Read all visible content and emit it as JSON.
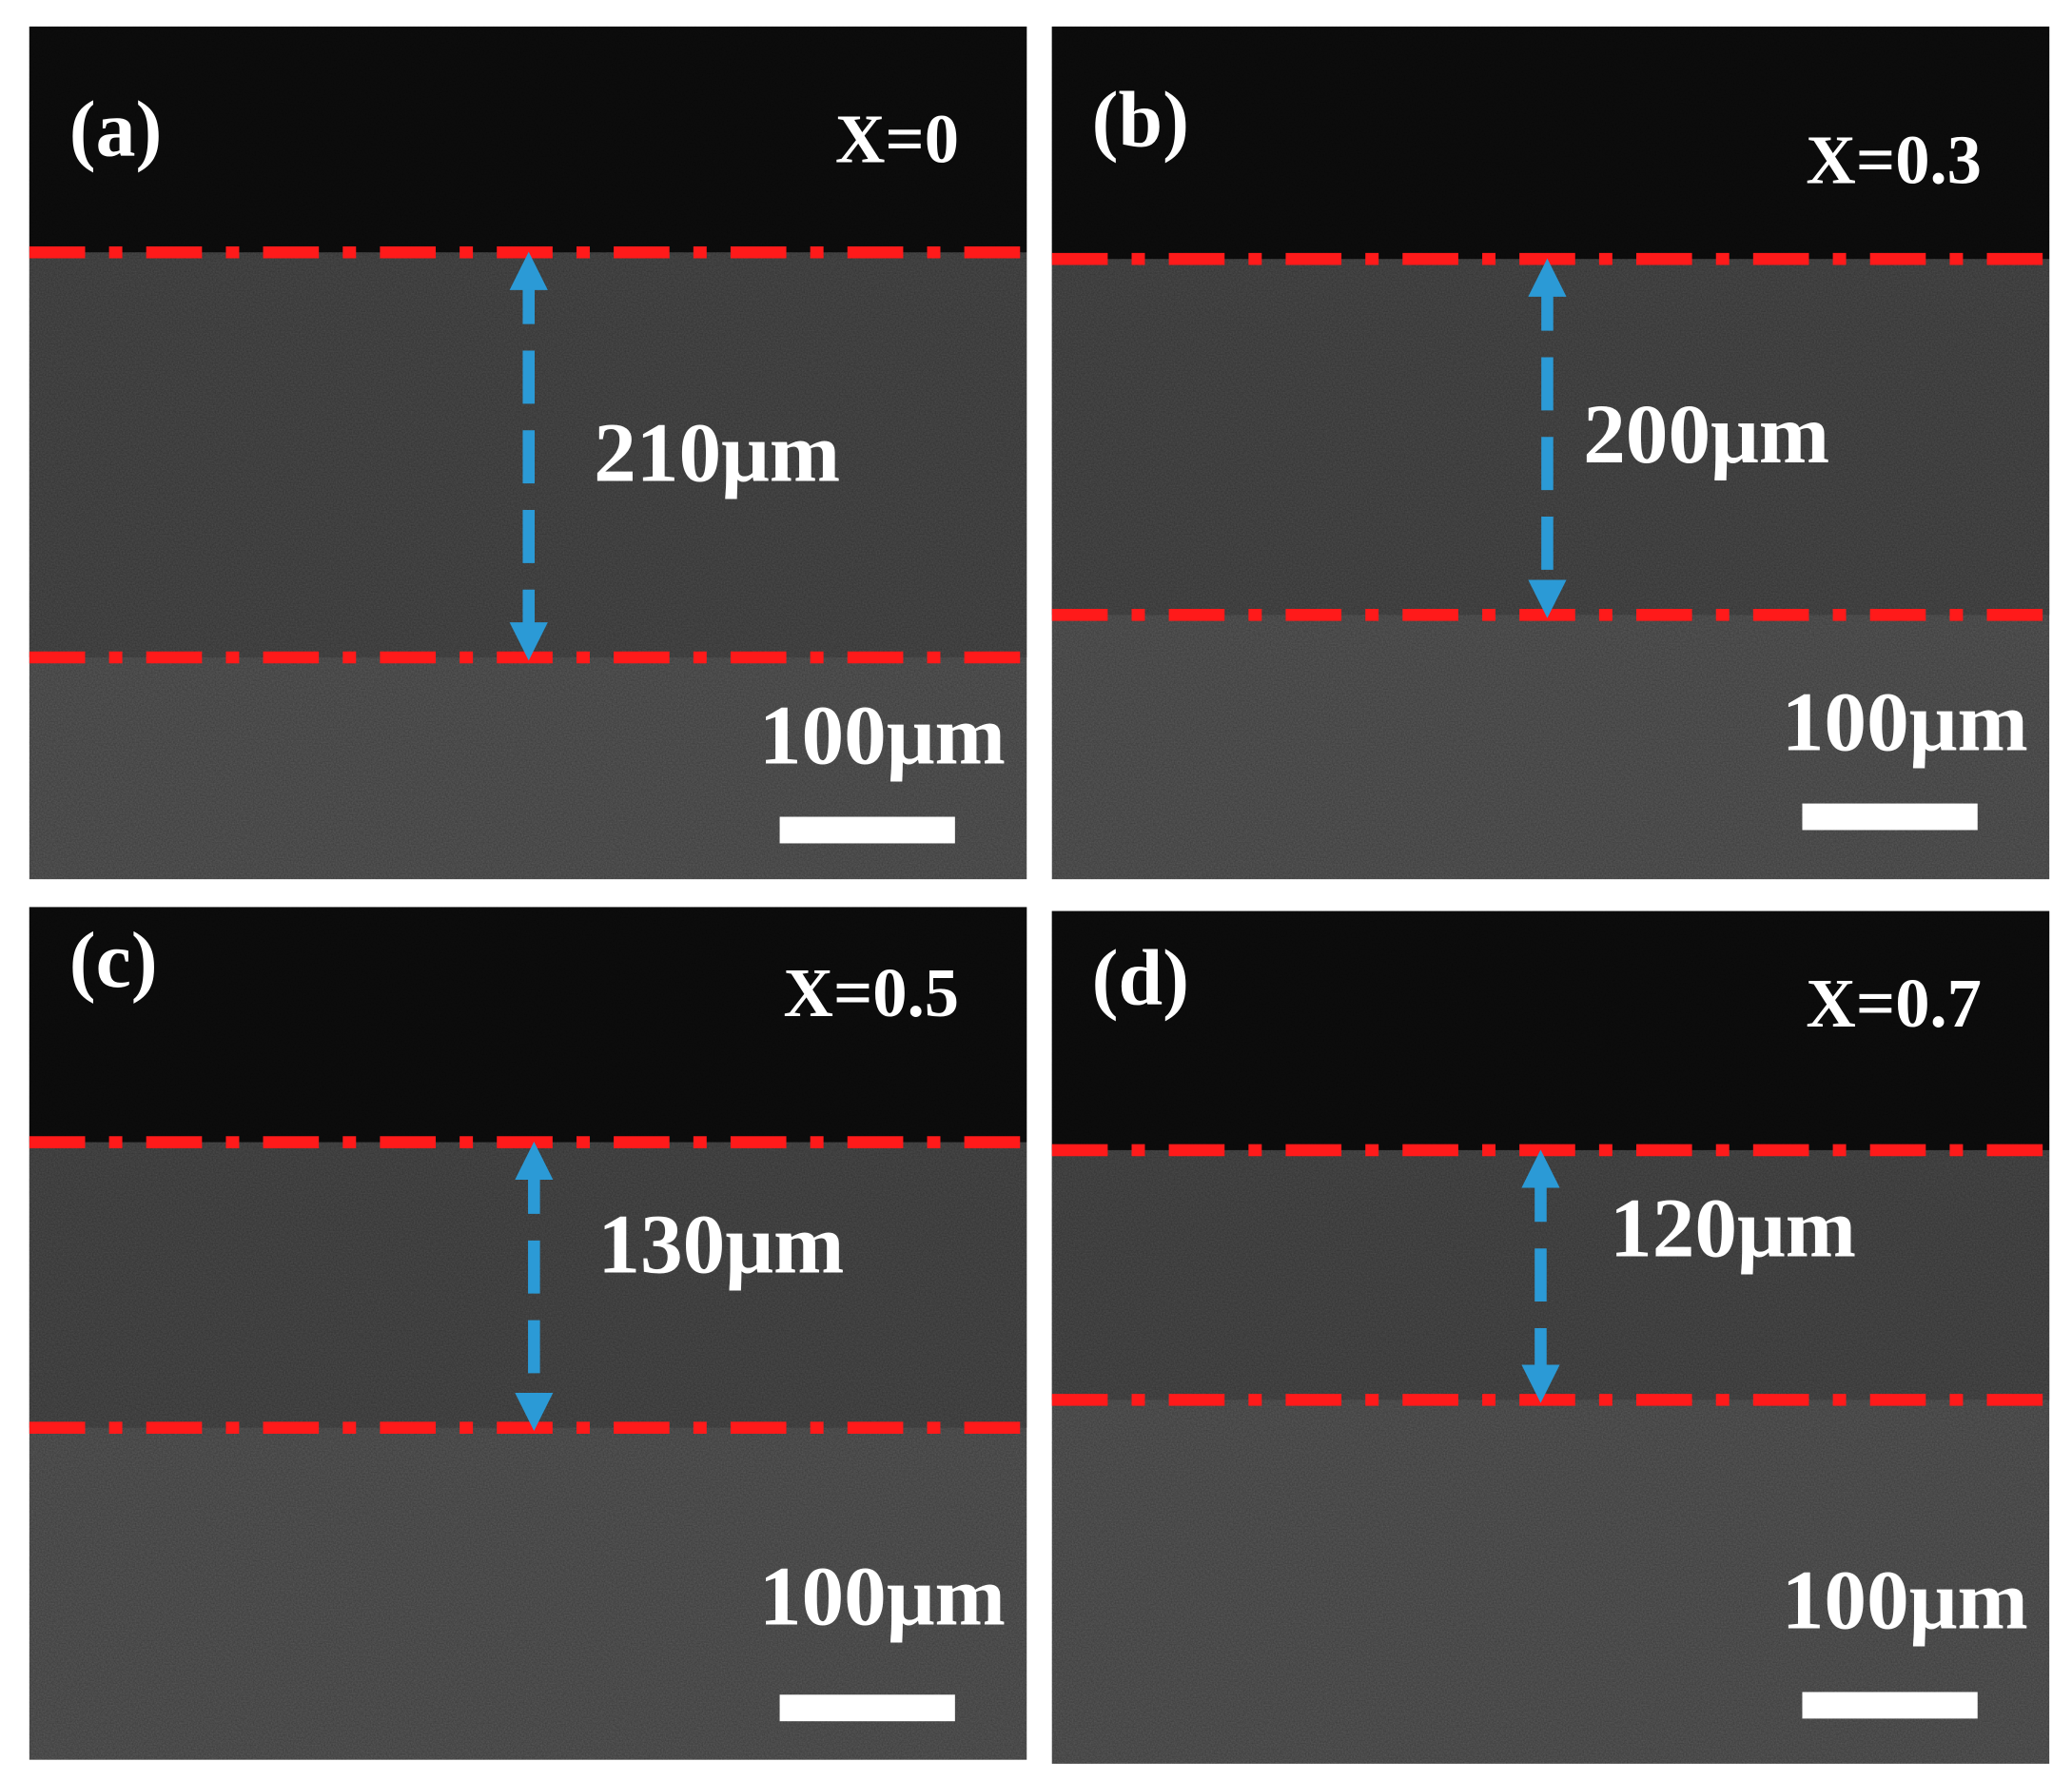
{
  "panels": [
    {
      "label": "(a)",
      "composition": "X=0",
      "thickness": "210μm",
      "scale_bar": "100μm"
    },
    {
      "label": "(b)",
      "composition": "X=0.3",
      "thickness": "200μm",
      "scale_bar": "100μm"
    },
    {
      "label": "(c)",
      "composition": "X=0.5",
      "thickness": "130μm",
      "scale_bar": "100μm"
    },
    {
      "label": "(d)",
      "composition": "X=0.7",
      "thickness": "120μm",
      "scale_bar": "100μm"
    }
  ]
}
